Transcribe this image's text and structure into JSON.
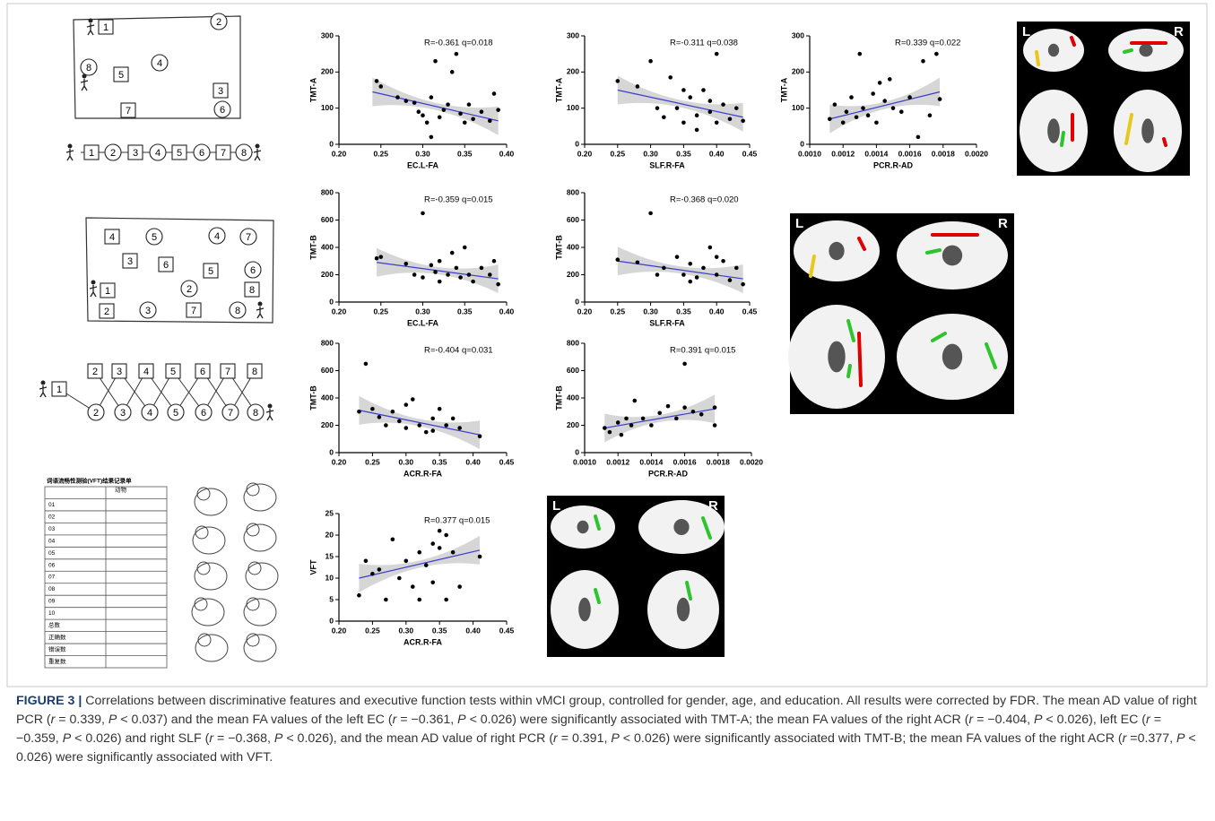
{
  "chart_data": [
    {
      "type": "scatter",
      "ylabel": "TMT-A",
      "xlabel": "EC.L-FA",
      "annotation": "R=-0.361  q=0.018",
      "color": "#000000",
      "fit_color": "#3b3bd0",
      "x": [
        0.245,
        0.25,
        0.27,
        0.28,
        0.29,
        0.295,
        0.3,
        0.305,
        0.31,
        0.315,
        0.32,
        0.325,
        0.33,
        0.335,
        0.34,
        0.345,
        0.35,
        0.355,
        0.36,
        0.37,
        0.38,
        0.385,
        0.39,
        0.31
      ],
      "values": [
        175,
        160,
        130,
        120,
        115,
        90,
        80,
        60,
        130,
        230,
        75,
        95,
        110,
        200,
        250,
        85,
        60,
        110,
        70,
        90,
        65,
        140,
        95,
        20
      ],
      "fit_x": [
        0.24,
        0.39
      ],
      "fit_y": [
        145,
        65
      ],
      "xlim": [
        0.2,
        0.4
      ],
      "ylim": [
        0,
        300
      ],
      "xticks": [
        {
          "value": 0.2,
          "label": "0.20"
        },
        {
          "value": 0.25,
          "label": "0.25"
        },
        {
          "value": 0.3,
          "label": "0.30"
        },
        {
          "value": 0.35,
          "label": "0.35"
        },
        {
          "value": 0.4,
          "label": "0.40"
        }
      ],
      "yticks": [
        0,
        100,
        200,
        300
      ]
    },
    {
      "type": "scatter",
      "ylabel": "TMT-A",
      "xlabel": "SLF.R-FA",
      "annotation": "R=-0.311  q=0.038",
      "color": "#000000",
      "fit_color": "#3b3bd0",
      "x": [
        0.25,
        0.28,
        0.3,
        0.31,
        0.32,
        0.33,
        0.34,
        0.35,
        0.36,
        0.37,
        0.38,
        0.39,
        0.4,
        0.4,
        0.41,
        0.42,
        0.43,
        0.44,
        0.35,
        0.37,
        0.39
      ],
      "values": [
        175,
        160,
        230,
        100,
        75,
        185,
        100,
        60,
        130,
        80,
        150,
        90,
        60,
        250,
        110,
        70,
        100,
        65,
        150,
        40,
        120
      ],
      "fit_x": [
        0.25,
        0.44
      ],
      "fit_y": [
        150,
        75
      ],
      "xlim": [
        0.2,
        0.45
      ],
      "ylim": [
        0,
        300
      ],
      "xticks": [
        {
          "value": 0.2,
          "label": "0.20"
        },
        {
          "value": 0.25,
          "label": "0.25"
        },
        {
          "value": 0.3,
          "label": "0.30"
        },
        {
          "value": 0.35,
          "label": "0.35"
        },
        {
          "value": 0.4,
          "label": "0.40"
        },
        {
          "value": 0.45,
          "label": "0.45"
        }
      ],
      "yticks": [
        0,
        100,
        200,
        300
      ]
    },
    {
      "type": "scatter",
      "ylabel": "TMT-A",
      "xlabel": "PCR.R-AD",
      "annotation": "R=0.339  q=0.022",
      "color": "#000000",
      "fit_color": "#3b3bd0",
      "x": [
        0.00112,
        0.00115,
        0.0012,
        0.00122,
        0.00125,
        0.00128,
        0.0013,
        0.00132,
        0.00135,
        0.00138,
        0.0014,
        0.00142,
        0.00145,
        0.00148,
        0.0015,
        0.00155,
        0.0016,
        0.00165,
        0.00168,
        0.00172,
        0.00176,
        0.00178
      ],
      "values": [
        70,
        110,
        60,
        90,
        130,
        75,
        250,
        100,
        80,
        140,
        60,
        170,
        120,
        180,
        100,
        90,
        130,
        20,
        230,
        80,
        250,
        125
      ],
      "fit_x": [
        0.00112,
        0.00178
      ],
      "fit_y": [
        70,
        145
      ],
      "xlim": [
        0.001,
        0.002
      ],
      "ylim": [
        0,
        300
      ],
      "xticks": [
        {
          "value": 0.001,
          "label": "0.0010"
        },
        {
          "value": 0.0012,
          "label": "0.0012"
        },
        {
          "value": 0.0014,
          "label": "0.0014"
        },
        {
          "value": 0.0016,
          "label": "0.0016"
        },
        {
          "value": 0.0018,
          "label": "0.0018"
        },
        {
          "value": 0.002,
          "label": "0.0020"
        }
      ],
      "yticks": [
        0,
        100,
        200,
        300
      ]
    },
    {
      "type": "scatter",
      "ylabel": "TMT-B",
      "xlabel": "EC.L-FA",
      "annotation": "R=-0.359  q=0.015",
      "color": "#000000",
      "fit_color": "#3b3bd0",
      "x": [
        0.245,
        0.25,
        0.28,
        0.29,
        0.3,
        0.3,
        0.31,
        0.315,
        0.32,
        0.32,
        0.33,
        0.335,
        0.34,
        0.345,
        0.35,
        0.355,
        0.36,
        0.37,
        0.38,
        0.385,
        0.39
      ],
      "values": [
        320,
        330,
        280,
        200,
        650,
        180,
        270,
        220,
        300,
        150,
        200,
        360,
        250,
        180,
        400,
        200,
        150,
        250,
        200,
        300,
        130
      ],
      "fit_x": [
        0.245,
        0.39
      ],
      "fit_y": [
        290,
        170
      ],
      "xlim": [
        0.2,
        0.4
      ],
      "ylim": [
        0,
        800
      ],
      "xticks": [
        {
          "value": 0.2,
          "label": "0.20"
        },
        {
          "value": 0.25,
          "label": "0.25"
        },
        {
          "value": 0.3,
          "label": "0.30"
        },
        {
          "value": 0.35,
          "label": "0.35"
        },
        {
          "value": 0.4,
          "label": "0.40"
        }
      ],
      "yticks": [
        0,
        200,
        400,
        600,
        800
      ]
    },
    {
      "type": "scatter",
      "ylabel": "TMT-B",
      "xlabel": "SLF.R-FA",
      "annotation": "R=-0.368  q=0.020",
      "color": "#000000",
      "fit_color": "#3b3bd0",
      "x": [
        0.25,
        0.28,
        0.3,
        0.31,
        0.32,
        0.34,
        0.35,
        0.36,
        0.37,
        0.38,
        0.39,
        0.4,
        0.41,
        0.42,
        0.43,
        0.44,
        0.36,
        0.4
      ],
      "values": [
        310,
        290,
        650,
        200,
        250,
        330,
        200,
        280,
        180,
        250,
        400,
        200,
        300,
        160,
        250,
        130,
        150,
        330
      ],
      "fit_x": [
        0.25,
        0.44
      ],
      "fit_y": [
        300,
        170
      ],
      "xlim": [
        0.2,
        0.45
      ],
      "ylim": [
        0,
        800
      ],
      "xticks": [
        {
          "value": 0.2,
          "label": "0.20"
        },
        {
          "value": 0.25,
          "label": "0.25"
        },
        {
          "value": 0.3,
          "label": "0.30"
        },
        {
          "value": 0.35,
          "label": "0.35"
        },
        {
          "value": 0.4,
          "label": "0.40"
        },
        {
          "value": 0.45,
          "label": "0.45"
        }
      ],
      "yticks": [
        0,
        200,
        400,
        600,
        800
      ]
    },
    {
      "type": "scatter",
      "ylabel": "TMT-B",
      "xlabel": "ACR.R-FA",
      "annotation": "R=-0.404  q=0.031",
      "color": "#000000",
      "fit_color": "#3b3bd0",
      "x": [
        0.23,
        0.24,
        0.25,
        0.26,
        0.27,
        0.28,
        0.29,
        0.3,
        0.31,
        0.32,
        0.33,
        0.34,
        0.35,
        0.36,
        0.37,
        0.38,
        0.41,
        0.3,
        0.34
      ],
      "values": [
        300,
        650,
        320,
        260,
        200,
        300,
        230,
        350,
        390,
        200,
        150,
        250,
        320,
        200,
        250,
        180,
        120,
        180,
        160
      ],
      "fit_x": [
        0.23,
        0.41
      ],
      "fit_y": [
        310,
        130
      ],
      "xlim": [
        0.2,
        0.45
      ],
      "ylim": [
        0,
        800
      ],
      "xticks": [
        {
          "value": 0.2,
          "label": "0.20"
        },
        {
          "value": 0.25,
          "label": "0.25"
        },
        {
          "value": 0.3,
          "label": "0.30"
        },
        {
          "value": 0.35,
          "label": "0.35"
        },
        {
          "value": 0.4,
          "label": "0.40"
        },
        {
          "value": 0.45,
          "label": "0.45"
        }
      ],
      "yticks": [
        0,
        200,
        400,
        600,
        800
      ]
    },
    {
      "type": "scatter",
      "ylabel": "TMT-B",
      "xlabel": "PCR.R-AD",
      "annotation": "R=0.391  q=0.015",
      "color": "#000000",
      "fit_color": "#3b3bd0",
      "x": [
        0.00112,
        0.00115,
        0.0012,
        0.00122,
        0.00125,
        0.00128,
        0.0013,
        0.00135,
        0.0014,
        0.00145,
        0.0015,
        0.00155,
        0.0016,
        0.0016,
        0.00165,
        0.0017,
        0.00178,
        0.00178
      ],
      "values": [
        180,
        150,
        220,
        130,
        250,
        200,
        380,
        250,
        200,
        290,
        340,
        250,
        650,
        330,
        300,
        280,
        200,
        330
      ],
      "fit_x": [
        0.00112,
        0.00178
      ],
      "fit_y": [
        180,
        320
      ],
      "xlim": [
        0.001,
        0.002
      ],
      "ylim": [
        0,
        800
      ],
      "xticks": [
        {
          "value": 0.001,
          "label": "0.0010"
        },
        {
          "value": 0.0012,
          "label": "0.0012"
        },
        {
          "value": 0.0014,
          "label": "0.0014"
        },
        {
          "value": 0.0016,
          "label": "0.0016"
        },
        {
          "value": 0.0018,
          "label": "0.0018"
        },
        {
          "value": 0.002,
          "label": "0.0020"
        }
      ],
      "yticks": [
        0,
        200,
        400,
        600,
        800
      ]
    },
    {
      "type": "scatter",
      "ylabel": "VFT",
      "xlabel": "ACR.R-FA",
      "annotation": "R=0.377  q=0.015",
      "color": "#000000",
      "fit_color": "#3b3bd0",
      "x": [
        0.23,
        0.24,
        0.25,
        0.26,
        0.27,
        0.28,
        0.29,
        0.3,
        0.31,
        0.32,
        0.32,
        0.33,
        0.34,
        0.34,
        0.35,
        0.35,
        0.36,
        0.37,
        0.38,
        0.41,
        0.36
      ],
      "values": [
        6,
        14,
        11,
        12,
        5,
        19,
        10,
        14,
        8,
        16,
        5,
        13,
        18,
        9,
        21,
        17,
        5,
        16,
        8,
        15,
        20
      ],
      "fit_x": [
        0.23,
        0.41
      ],
      "fit_y": [
        10,
        16.5
      ],
      "xlim": [
        0.2,
        0.45
      ],
      "ylim": [
        0,
        25
      ],
      "xticks": [
        {
          "value": 0.2,
          "label": "0.20"
        },
        {
          "value": 0.25,
          "label": "0.25"
        },
        {
          "value": 0.3,
          "label": "0.30"
        },
        {
          "value": 0.35,
          "label": "0.35"
        },
        {
          "value": 0.4,
          "label": "0.40"
        },
        {
          "value": 0.45,
          "label": "0.45"
        }
      ],
      "yticks": [
        0,
        5,
        10,
        15,
        20,
        25
      ]
    }
  ],
  "tmt_a": {
    "sheet": [
      "1",
      "2",
      "4",
      "5",
      "8",
      "3",
      "7",
      "6"
    ],
    "sequence": [
      "1",
      "2",
      "3",
      "4",
      "5",
      "6",
      "7",
      "8"
    ]
  },
  "tmt_b": {
    "sheet": [
      "4",
      "5",
      "4",
      "7",
      "3",
      "6",
      "5",
      "6",
      "1",
      "2",
      "8",
      "2",
      "3",
      "7",
      "8"
    ],
    "sequence": [
      "1",
      "2",
      "3",
      "4",
      "5",
      "6",
      "7",
      "8",
      "2",
      "3",
      "4",
      "5",
      "6",
      "7",
      "8"
    ]
  },
  "vft_form": {
    "title": "词语流畅性测验(VFT)结果记录单",
    "header": "动物",
    "rows": [
      "01",
      "02",
      "03",
      "04",
      "05",
      "06",
      "07",
      "08",
      "09",
      "10",
      "总数",
      "正确数",
      "错误数",
      "重复数"
    ]
  },
  "brain_panels": [
    {
      "left": "L",
      "right": "R"
    },
    {
      "left": "L",
      "right": "R"
    },
    {
      "left": "L",
      "right": "R"
    }
  ],
  "caption": {
    "label": "FIGURE 3 |",
    "parts": [
      " Correlations between discriminative features and executive function tests within vMCI group, controlled for gender, age, and education. All results were corrected by FDR. The mean AD value of right PCR (",
      "r",
      " = 0.339, ",
      "P",
      " < 0.037) and the mean FA values of the left EC (",
      "r",
      " = −0.361, ",
      "P",
      " < 0.026) were significantly associated with TMT-A; the mean FA values of the right ACR (",
      "r",
      " = −0.404, ",
      "P",
      " < 0.026), left EC (",
      "r",
      " = −0.359, ",
      "P",
      " < 0.026) and right SLF (",
      "r",
      " = −0.368, ",
      "P",
      " < 0.026), and the mean AD value of right PCR (",
      "r",
      " = 0.391, ",
      "P",
      " < 0.026) were significantly associated with TMT-B; the mean FA values of the right ACR (",
      "r",
      " =0.377, ",
      "P",
      " < 0.026) were significantly associated with VFT."
    ]
  }
}
